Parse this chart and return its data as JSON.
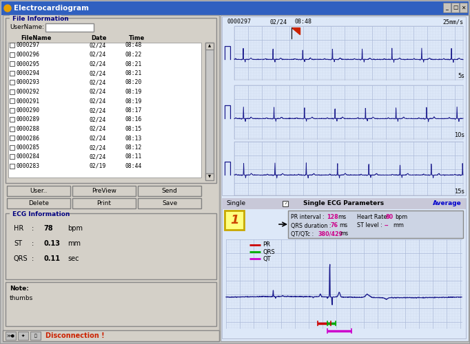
{
  "title": "Electrocardiogram",
  "bg_outer": "#999999",
  "bg_window": "#d4d0c8",
  "titlebar_color": "#3060c0",
  "ecg_bg": "#dde8f8",
  "ecg_line_color": "#1a1a8c",
  "ecg_grid_major": "#aab8d8",
  "ecg_grid_minor": "#ccd8ee",
  "file_info_label": "File Information",
  "username_label": "UserName:",
  "columns": [
    "FileName",
    "Date",
    "Time"
  ],
  "files": [
    [
      "0000297",
      "02/24",
      "08:48"
    ],
    [
      "0000296",
      "02/24",
      "08:22"
    ],
    [
      "0000295",
      "02/24",
      "08:21"
    ],
    [
      "0000294",
      "02/24",
      "08:21"
    ],
    [
      "0000293",
      "02/24",
      "08:20"
    ],
    [
      "0000292",
      "02/24",
      "08:19"
    ],
    [
      "0000291",
      "02/24",
      "08:19"
    ],
    [
      "0000290",
      "02/24",
      "08:17"
    ],
    [
      "0000289",
      "02/24",
      "08:16"
    ],
    [
      "0000288",
      "02/24",
      "08:15"
    ],
    [
      "0000286",
      "02/24",
      "08:13"
    ],
    [
      "0000285",
      "02/24",
      "08:12"
    ],
    [
      "0000284",
      "02/24",
      "08:11"
    ],
    [
      "0000283",
      "02/19",
      "08:44"
    ]
  ],
  "buttons_top": [
    "User..",
    "PreView",
    "Send"
  ],
  "buttons_bot": [
    "Delete",
    "Print",
    "Save"
  ],
  "ecg_info_label": "ECG Information",
  "hr_val": "78",
  "st_val": "0.13",
  "qrs_val": "0.11",
  "note_label": "Note:",
  "note_text": "thumbs",
  "disconnection_text": "Disconnection !",
  "ecg_header_id": "0000297",
  "ecg_header_date": "02/24",
  "ecg_header_time": "08:48",
  "ecg_speed": "25mm/s",
  "ecg_strip_labels": [
    "5s",
    "10s",
    "15s"
  ],
  "single_label": "Single",
  "average_label": "Average",
  "params_label": "Single ECG Parameters",
  "pr_interval": "128",
  "qrs_duration": "76",
  "qtqtc": "380/429",
  "heart_rate": "80",
  "st_level": "--",
  "lead_num": "1",
  "pr_color": "#cc0000",
  "qrs_color": "#00aa00",
  "qt_color": "#cc00cc",
  "red_flag_color": "#cc2200",
  "highlight_color": "#cc0088",
  "avg_color": "#0000cc"
}
